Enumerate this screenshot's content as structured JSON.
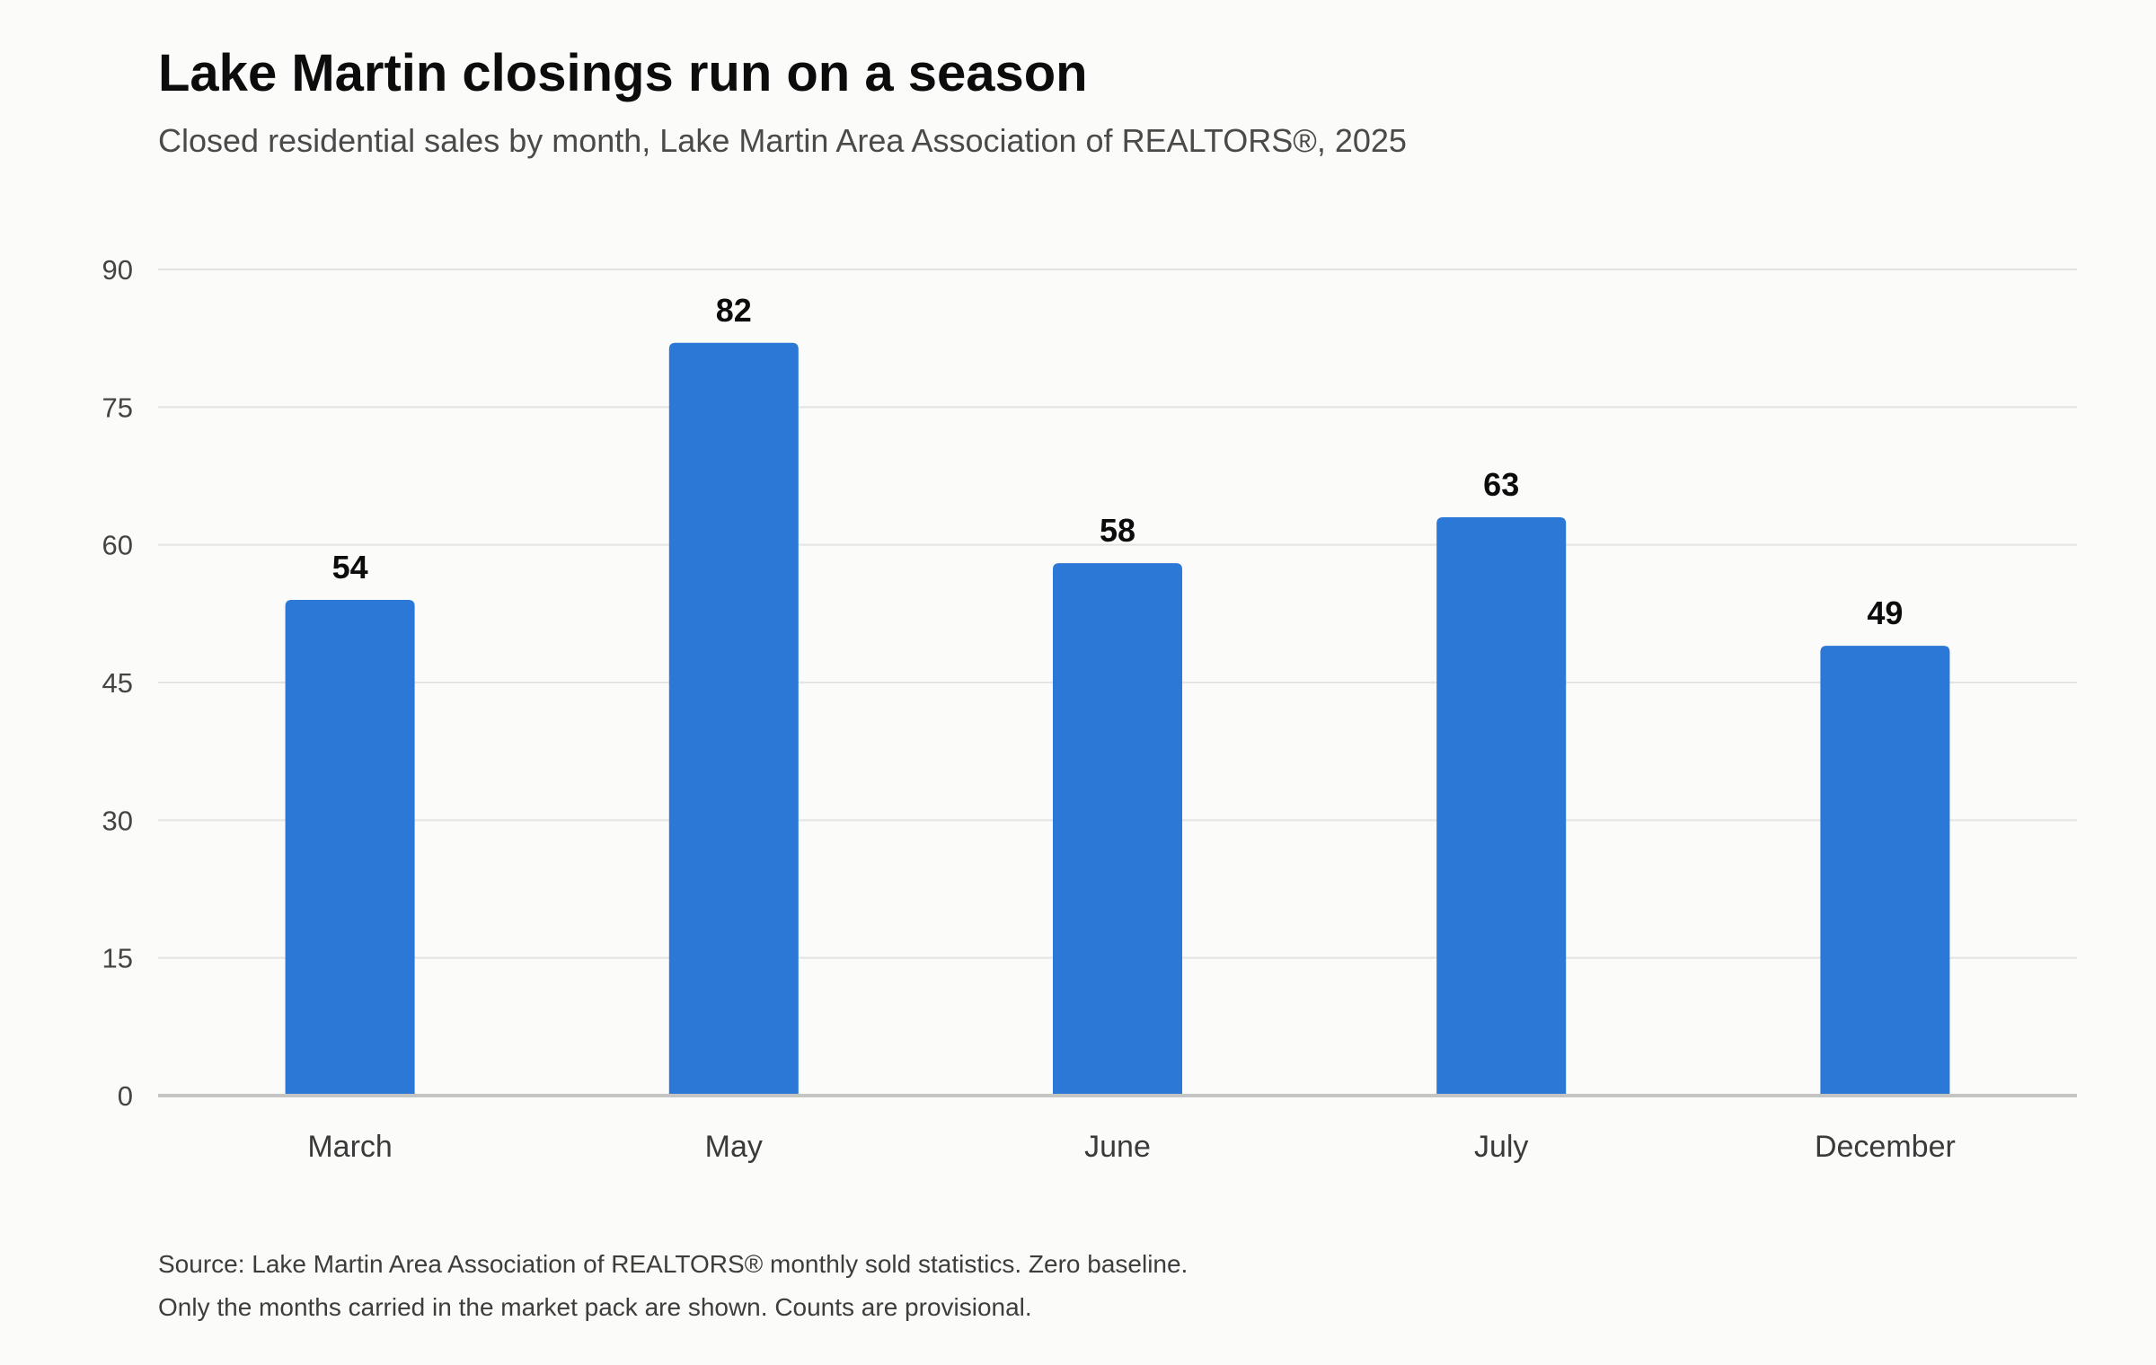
{
  "colors": {
    "bar": "#2b78d6",
    "grid": "#e4e4e2",
    "baseline": "#c4c4c2",
    "tick_text": "#444444",
    "label_text": "#0c0c0c",
    "background": "#fbfbf9"
  },
  "chart_data": {
    "type": "bar",
    "title": "Lake Martin closings run on a season",
    "subtitle": "Closed residential sales by month, Lake Martin Area Association of REALTORS®, 2025",
    "categories": [
      "March",
      "May",
      "June",
      "July",
      "December"
    ],
    "values": [
      54,
      82,
      58,
      63,
      49
    ],
    "xlabel": "",
    "ylabel": "",
    "ylim": [
      0,
      90
    ],
    "yticks": [
      0,
      15,
      30,
      45,
      60,
      75,
      90
    ],
    "grid": true,
    "data_labels": true
  },
  "notes": {
    "line1": "Source: Lake Martin Area Association of REALTORS® monthly sold statistics. Zero baseline.",
    "line2": "Only the months carried in the market pack are shown. Counts are provisional."
  }
}
